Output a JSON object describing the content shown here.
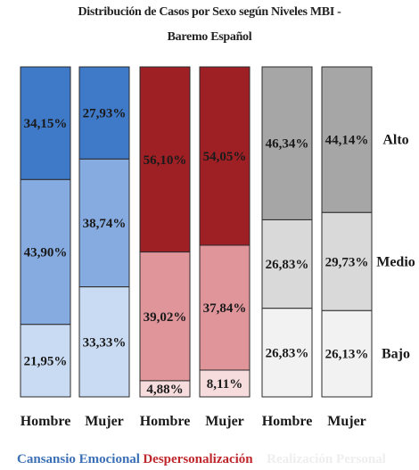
{
  "chart_data": {
    "type": "bar",
    "stacked": true,
    "normalized": true,
    "title_line1": "Distribución de Casos por Sexo según Niveles MBI -",
    "title_line2": "Baremo Español",
    "categories": [
      "Hombre",
      "Mujer",
      "Hombre",
      "Mujer",
      "Hombre",
      "Mujer"
    ],
    "groups": [
      {
        "name": "Cansansio Emocional",
        "color": "#3b6fb6",
        "bars": [
          {
            "category": "Hombre",
            "bajo": 21.95,
            "medio": 43.9,
            "alto": 34.15,
            "labels": {
              "bajo": "21,95%",
              "medio": "43,90%",
              "alto": "34,15%"
            }
          },
          {
            "category": "Mujer",
            "bajo": 33.33,
            "medio": 38.74,
            "alto": 27.93,
            "labels": {
              "bajo": "33,33%",
              "medio": "38,74%",
              "alto": "27,93%"
            }
          }
        ],
        "colors": {
          "alto": "#3f7ac9",
          "medio": "#86abe0",
          "bajo": "#c9dbf3"
        }
      },
      {
        "name": "Despersonalización",
        "color": "#c0272d",
        "bars": [
          {
            "category": "Hombre",
            "bajo": 4.88,
            "medio": 39.02,
            "alto": 56.1,
            "labels": {
              "bajo": "4,88%",
              "medio": "39,02%",
              "alto": "56,10%"
            }
          },
          {
            "category": "Mujer",
            "bajo": 8.11,
            "medio": 37.84,
            "alto": 54.05,
            "labels": {
              "bajo": "8,11%",
              "medio": "37,84%",
              "alto": "54,05%"
            }
          }
        ],
        "colors": {
          "alto": "#9e2025",
          "medio": "#e0959b",
          "bajo": "#f6dcdc"
        }
      },
      {
        "name": "Realización Personal",
        "color": "#eeeeee",
        "bars": [
          {
            "category": "Hombre",
            "bajo": 26.83,
            "medio": 26.83,
            "alto": 46.34,
            "labels": {
              "bajo": "26,83%",
              "medio": "26,83%",
              "alto": "46,34%"
            }
          },
          {
            "category": "Mujer",
            "bajo": 26.13,
            "medio": 29.73,
            "alto": 44.14,
            "labels": {
              "bajo": "26,13%",
              "medio": "29,73%",
              "alto": "44,14%"
            }
          }
        ],
        "colors": {
          "alto": "#a6a6a6",
          "medio": "#d9d9d9",
          "bajo": "#f2f2f2"
        }
      }
    ],
    "levels": [
      "Alto",
      "Medio",
      "Bajo"
    ],
    "ylim": [
      0,
      100
    ],
    "grid": false,
    "legend_position": "bottom"
  }
}
